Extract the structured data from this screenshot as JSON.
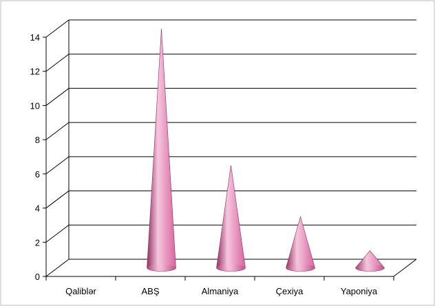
{
  "chart_data": {
    "type": "bar",
    "bar_shape": "cone",
    "categories": [
      "Qaliblər",
      "ABŞ",
      "Almaniya",
      "Çexiya",
      "Yaponiya"
    ],
    "values": [
      0,
      14,
      6,
      3,
      1
    ],
    "title": "",
    "xlabel": "",
    "ylabel": "",
    "ylim": [
      0,
      14
    ],
    "yticks": [
      0,
      2,
      4,
      6,
      8,
      10,
      12,
      14
    ],
    "grid": true,
    "legend": "none",
    "bar_color": "#d9649f",
    "bar_highlight": "#f6c6de",
    "bar_shadow": "#8e2f5e"
  }
}
